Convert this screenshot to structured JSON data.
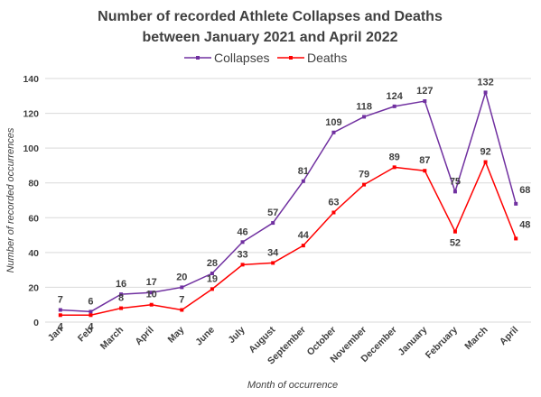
{
  "chart_data": {
    "type": "line",
    "title": [
      "Number of recorded Athlete Collapses and Deaths",
      "between January 2021 and April 2022"
    ],
    "xlabel": "Month of occurrence",
    "ylabel": "Number of recorded occurrences",
    "ylim": [
      0,
      140
    ],
    "yticks": [
      "0",
      "20",
      "40",
      "60",
      "80",
      "100",
      "120",
      "140"
    ],
    "grid": true,
    "legend_position": "top",
    "categories": [
      "Jan",
      "Feb",
      "March",
      "April",
      "May",
      "June",
      "July",
      "August",
      "September",
      "October",
      "November",
      "December",
      "January",
      "February",
      "March",
      "April"
    ],
    "series": [
      {
        "name": "Collapses",
        "color": "#7030a0",
        "values": [
          7,
          6,
          16,
          17,
          20,
          28,
          46,
          57,
          81,
          109,
          118,
          124,
          127,
          75,
          132,
          68
        ],
        "label_pos": [
          "above",
          "above",
          "above",
          "above",
          "above",
          "above",
          "above",
          "above",
          "above",
          "above",
          "above",
          "above",
          "above",
          "above",
          "above",
          "right"
        ]
      },
      {
        "name": "Deaths",
        "color": "#ff0000",
        "values": [
          4,
          4,
          8,
          10,
          7,
          19,
          33,
          34,
          44,
          63,
          79,
          89,
          87,
          52,
          92,
          48
        ],
        "label_pos": [
          "below",
          "below",
          "above",
          "above",
          "above",
          "above",
          "above",
          "above",
          "above",
          "above",
          "above",
          "above",
          "above",
          "below",
          "above",
          "right"
        ]
      }
    ]
  }
}
